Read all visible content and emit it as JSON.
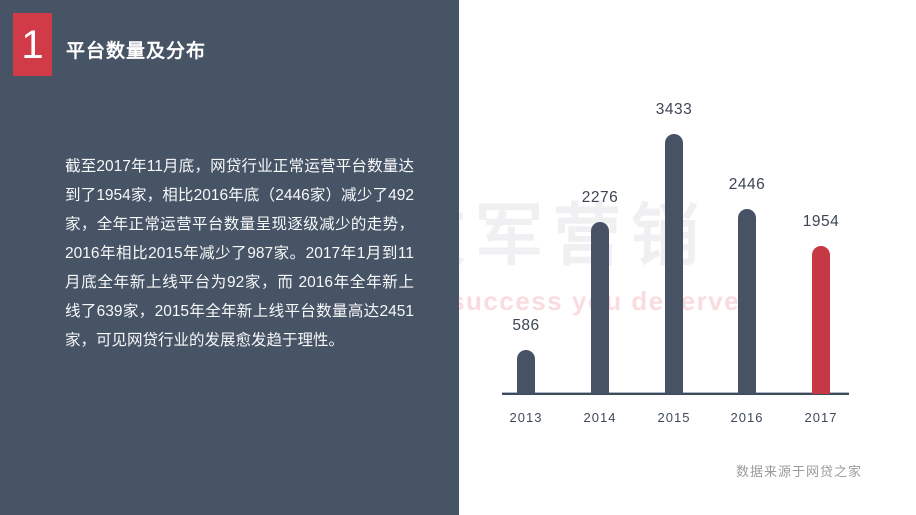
{
  "slide": {
    "badge_number": "1",
    "title": "平台数量及分布",
    "body_text": "截至2017年11月底，网贷行业正常运营平台数量达到了1954家，相比2016年底（2446家）减少了492家，全年正常运营平台数量呈现逐级减少的走势，2016年相比2015年减少了987家。2017年1月到11月底全年新上线平台为92家，而 2016年全年新上线了639家，2015年全年新上线平台数量高达2451家，可见网贷行业的发展愈发趋于理性。",
    "source_note": "数据来源于网贷之家"
  },
  "watermark": {
    "cjk": "文军营销",
    "latin": "success you deserve"
  },
  "colors": {
    "panel_background": "#475465",
    "badge_red": "#d13b47",
    "highlight_red": "#c63843",
    "bar_slate": "#475365",
    "axis_dark": "#3f4b5c",
    "label_dark": "#3d4654",
    "watermark_gray": "#f0f0f2",
    "watermark_pink": "#fadcdf"
  },
  "chart_data": {
    "type": "bar",
    "title": "",
    "xlabel": "",
    "ylabel": "",
    "categories": [
      "2013",
      "2014",
      "2015",
      "2016",
      "2017"
    ],
    "values": [
      586,
      2276,
      3433,
      2446,
      1954
    ],
    "data_labels": [
      586,
      2276,
      3433,
      2446,
      1954
    ],
    "highlight_index": 4,
    "bar_color": "#475365",
    "highlight_color": "#c63843",
    "ylim": [
      0,
      3600
    ],
    "grid": false,
    "legend": false
  }
}
